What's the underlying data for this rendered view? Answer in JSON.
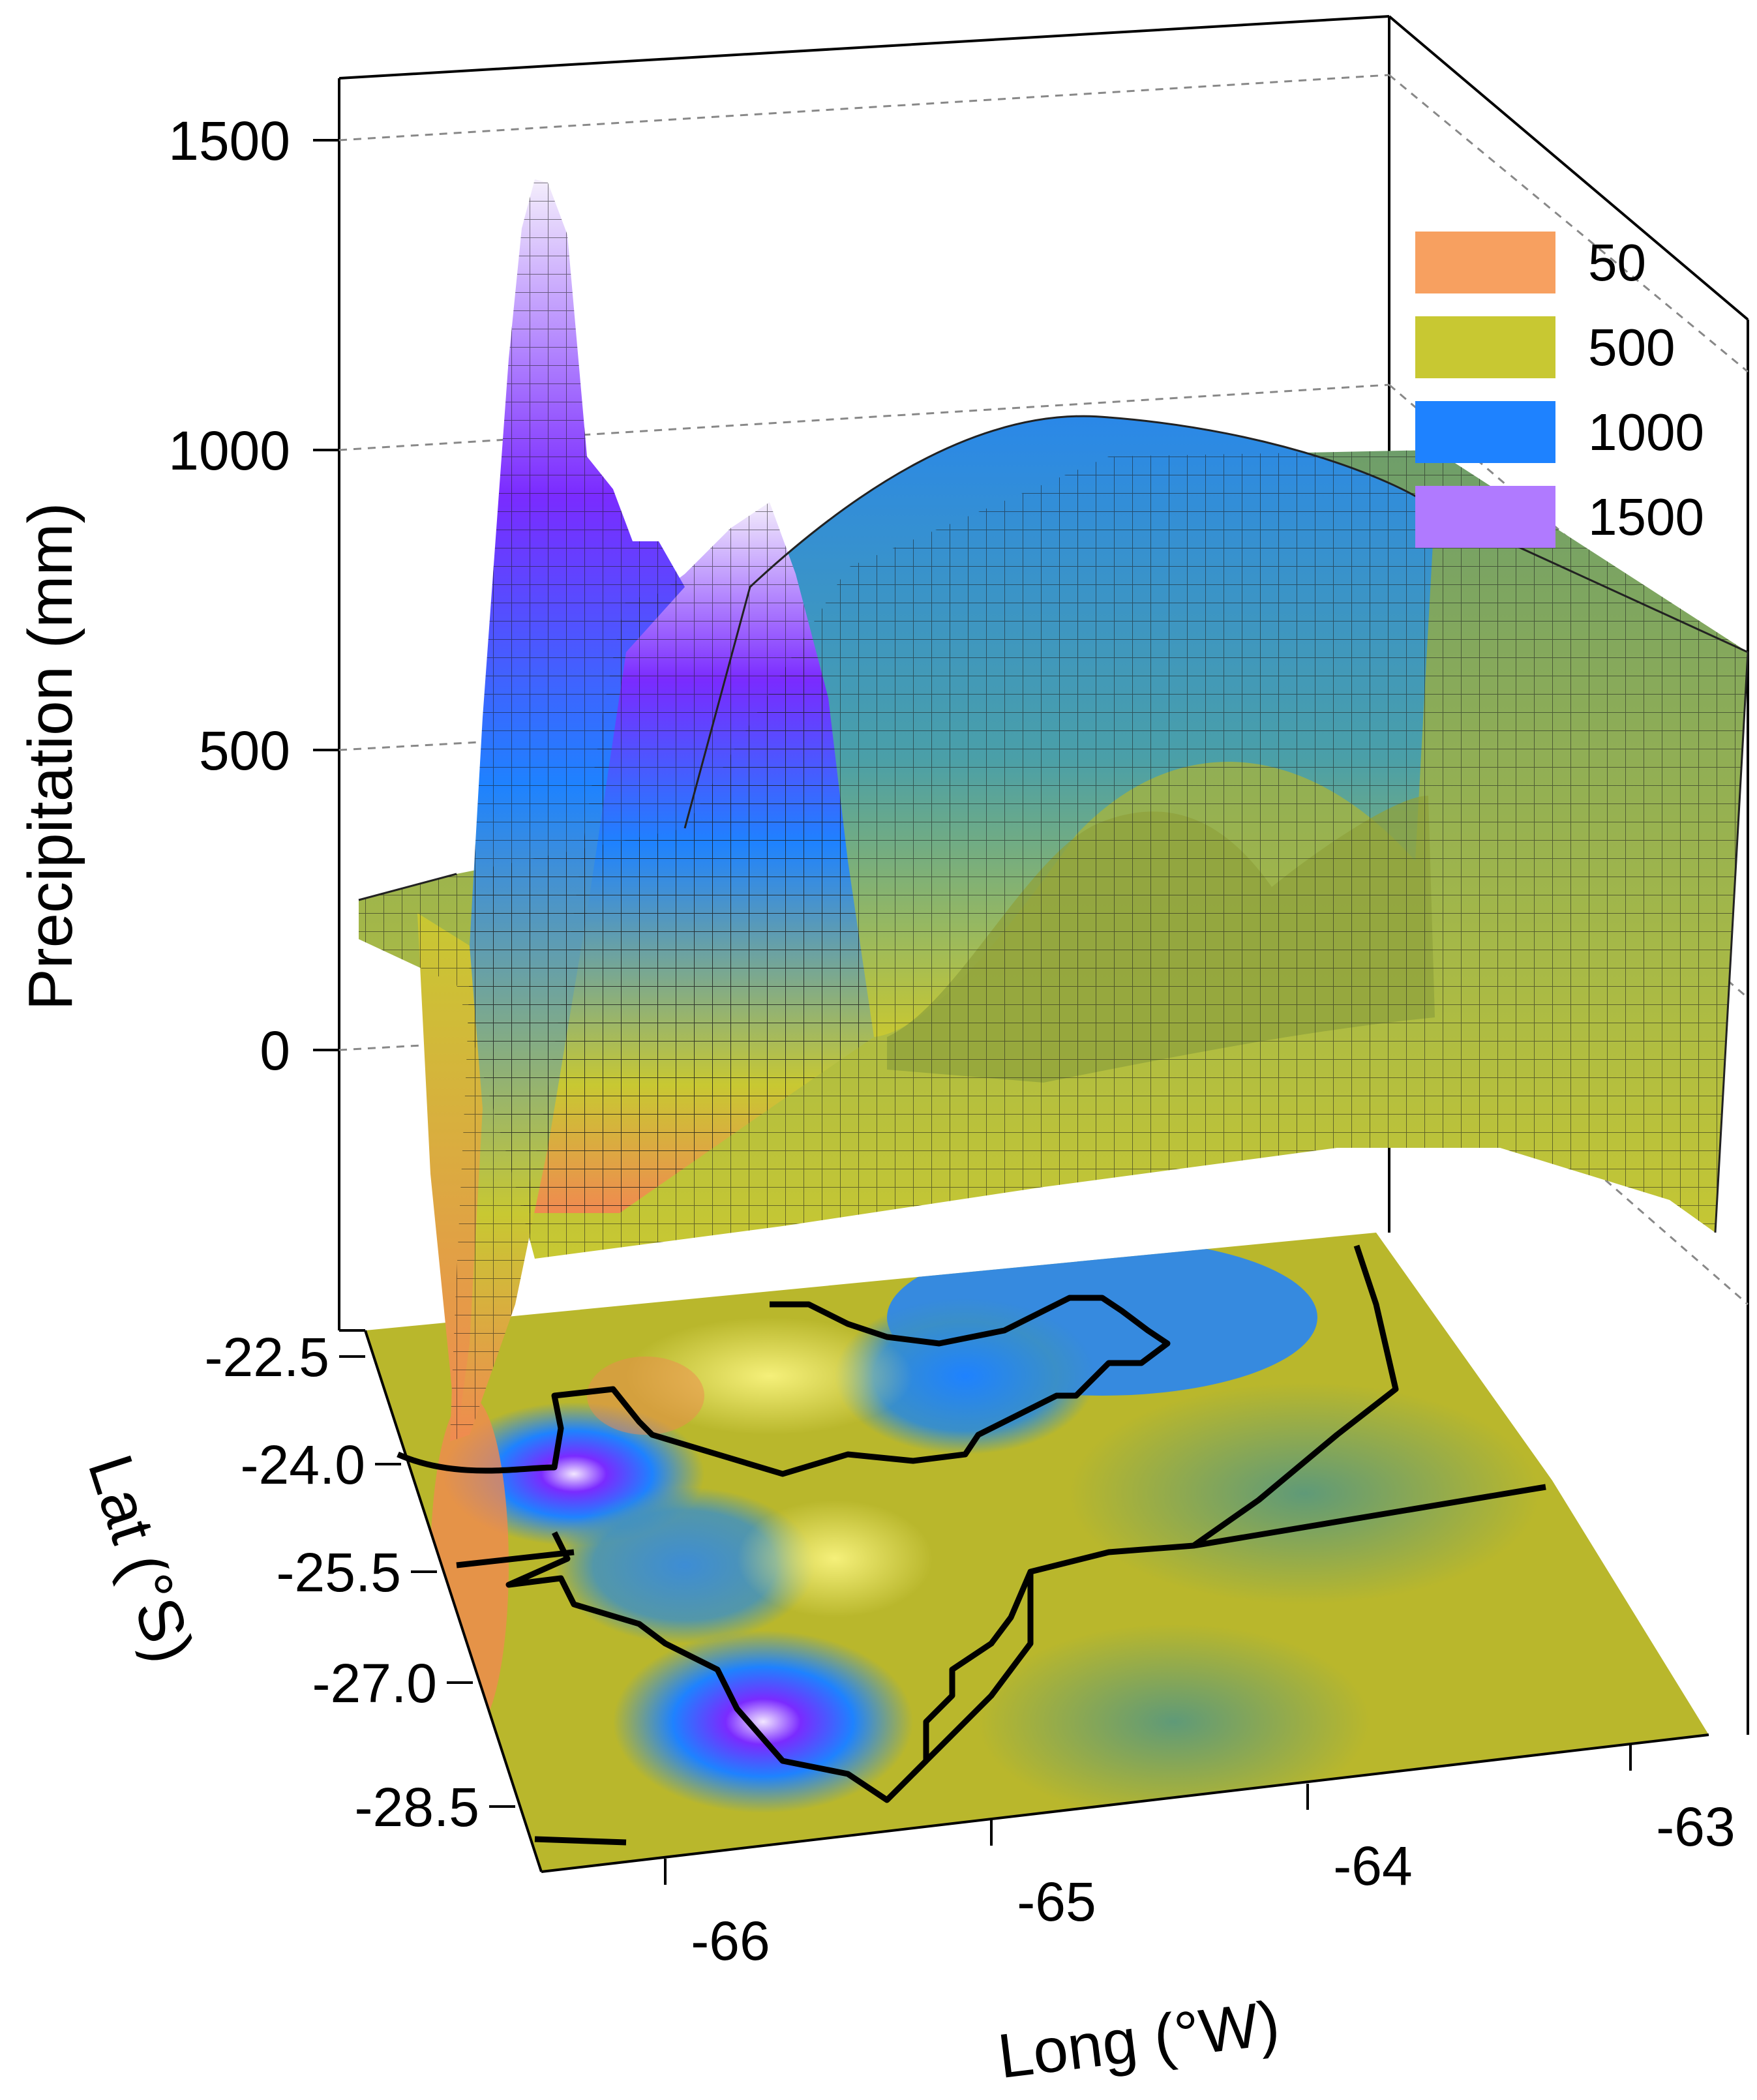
{
  "chart_data": {
    "type": "surface-3d",
    "zlabel": "Precipitation (mm)",
    "xlabel": "Long (°W)",
    "ylabel": "Lat (°S)",
    "z_ticks": [
      "1500",
      "1000",
      "500",
      "0"
    ],
    "y_ticks": [
      "-22.5",
      "-24.0",
      "-25.5",
      "-27.0",
      "-28.5"
    ],
    "x_ticks": [
      "-66",
      "-65",
      "-64",
      "-63"
    ],
    "zlim": [
      -400,
      1500
    ],
    "xlim": [
      -66.4,
      -62.8
    ],
    "ylim": [
      -22.5,
      -28.9
    ],
    "grid": true,
    "legend_position": "top-right",
    "legend": [
      {
        "label": "50",
        "color": "#f7a060"
      },
      {
        "label": "500",
        "color": "#c8c832"
      },
      {
        "label": "1000",
        "color": "#1e82ff"
      },
      {
        "label": "1500",
        "color": "#b07aff"
      }
    ],
    "surface_peaks": [
      {
        "long": -66.1,
        "lat": -24.0,
        "precip_mm": 1450
      },
      {
        "long": -65.7,
        "lat": -27.0,
        "precip_mm": 920
      },
      {
        "long": -64.7,
        "lat": -22.8,
        "precip_mm": 1000
      },
      {
        "long": -64.3,
        "lat": -24.9,
        "precip_mm": 420
      }
    ]
  }
}
